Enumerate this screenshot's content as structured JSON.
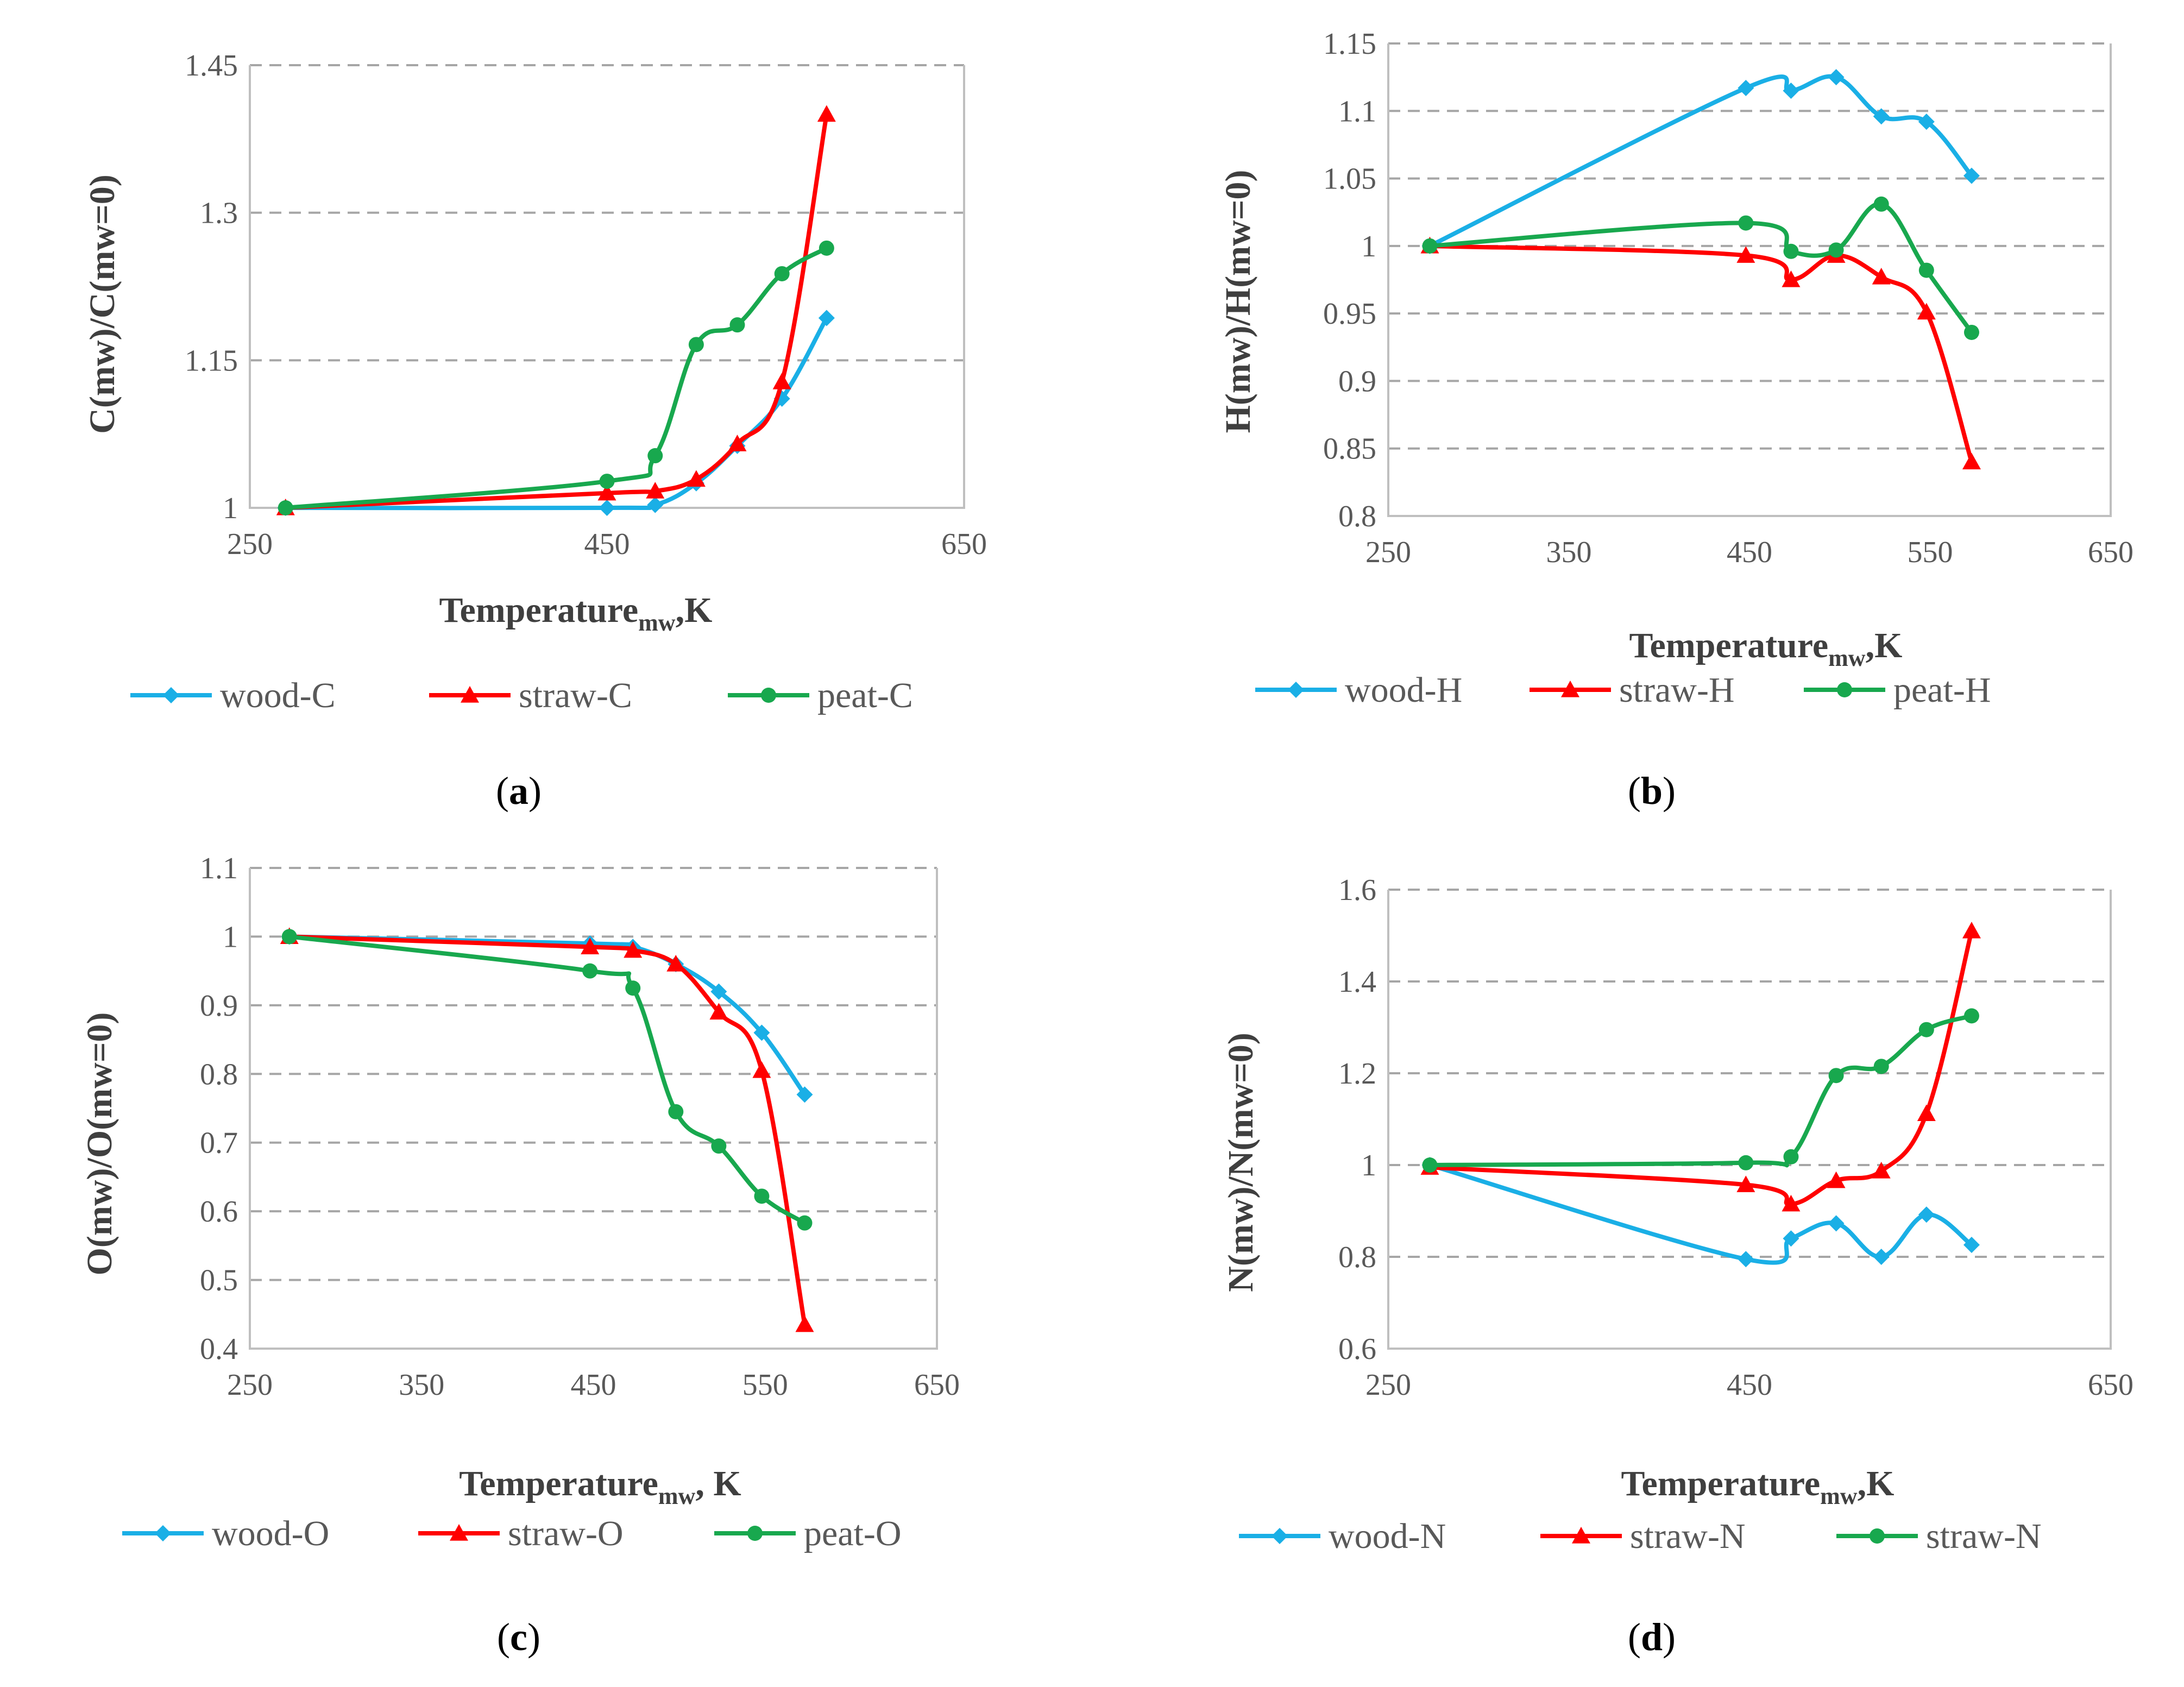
{
  "colors": {
    "wood": "#1aafe6",
    "straw": "#ff0000",
    "peat": "#18a84e"
  },
  "chart_data": [
    {
      "id": "a",
      "type": "line",
      "panel_label": "a",
      "ylabel": "C(mw)/C(mw=0)",
      "xlabel_main": "Temperature",
      "xlabel_sub": "mw",
      "xlabel_tail": ",K",
      "xlim": [
        250,
        650
      ],
      "ylim": [
        1,
        1.45
      ],
      "xticks": [
        250,
        450,
        650
      ],
      "xtick_labels": [
        "250",
        "450",
        "650"
      ],
      "yticks": [
        1,
        1.15,
        1.3,
        1.45
      ],
      "ytick_labels": [
        "1",
        "1.15",
        "1.3",
        "1.45"
      ],
      "series": [
        {
          "name": "wood-C",
          "color": "#1aafe6",
          "marker": "diamond",
          "x": [
            270,
            450,
            477,
            500,
            523,
            548,
            573
          ],
          "y": [
            1.0,
            1.0,
            1.003,
            1.025,
            1.063,
            1.111,
            1.193
          ]
        },
        {
          "name": "straw-C",
          "color": "#ff0000",
          "marker": "triangle",
          "x": [
            270,
            450,
            477,
            500,
            523,
            548,
            573
          ],
          "y": [
            1.0,
            1.015,
            1.017,
            1.029,
            1.065,
            1.128,
            1.4
          ]
        },
        {
          "name": "peat-C",
          "color": "#18a84e",
          "marker": "circle",
          "x": [
            270,
            450,
            477,
            500,
            523,
            548,
            573
          ],
          "y": [
            1.0,
            1.027,
            1.053,
            1.166,
            1.186,
            1.238,
            1.264
          ]
        }
      ]
    },
    {
      "id": "b",
      "type": "line",
      "panel_label": "b",
      "ylabel": "H(mw)/H(mw=0)",
      "xlabel_main": "Temperature",
      "xlabel_sub": "mw",
      "xlabel_tail": ",K",
      "xlim": [
        250,
        650
      ],
      "ylim": [
        0.8,
        1.15
      ],
      "xticks": [
        250,
        350,
        450,
        550,
        650
      ],
      "xtick_labels": [
        "250",
        "350",
        "450",
        "550",
        "650"
      ],
      "yticks": [
        0.8,
        0.85,
        0.9,
        0.95,
        1,
        1.05,
        1.1,
        1.15
      ],
      "ytick_labels": [
        "0.8",
        "0.85",
        "0.9",
        "0.95",
        "1",
        "1.05",
        "1.1",
        "1.15"
      ],
      "series": [
        {
          "name": "wood-H",
          "color": "#1aafe6",
          "marker": "diamond",
          "x": [
            273,
            448,
            473,
            498,
            523,
            548,
            573
          ],
          "y": [
            1.0,
            1.117,
            1.115,
            1.125,
            1.096,
            1.092,
            1.052
          ]
        },
        {
          "name": "straw-H",
          "color": "#ff0000",
          "marker": "triangle",
          "x": [
            273,
            448,
            473,
            498,
            523,
            548,
            573
          ],
          "y": [
            1.0,
            0.993,
            0.975,
            0.993,
            0.977,
            0.951,
            0.84
          ]
        },
        {
          "name": "peat-H",
          "color": "#18a84e",
          "marker": "circle",
          "x": [
            273,
            448,
            473,
            498,
            523,
            548,
            573
          ],
          "y": [
            1.0,
            1.017,
            0.996,
            0.997,
            1.031,
            0.982,
            0.936
          ]
        }
      ]
    },
    {
      "id": "c",
      "type": "line",
      "panel_label": "c",
      "ylabel": "O(mw)/O(mw=0)",
      "xlabel_main": "Temperature",
      "xlabel_sub": "mw",
      "xlabel_tail": ", K",
      "xlim": [
        250,
        650
      ],
      "ylim": [
        0.4,
        1.1
      ],
      "xticks": [
        250,
        350,
        450,
        550,
        650
      ],
      "xtick_labels": [
        "250",
        "350",
        "450",
        "550",
        "650"
      ],
      "yticks": [
        0.4,
        0.5,
        0.6,
        0.7,
        0.8,
        0.9,
        1,
        1.1
      ],
      "ytick_labels": [
        "0.4",
        "0.5",
        "0.6",
        "0.7",
        "0.8",
        "0.9",
        "1",
        "1.1"
      ],
      "series": [
        {
          "name": "wood-O",
          "color": "#1aafe6",
          "marker": "diamond",
          "x": [
            273,
            448,
            473,
            498,
            523,
            548,
            573
          ],
          "y": [
            1.0,
            0.99,
            0.985,
            0.96,
            0.92,
            0.86,
            0.77
          ]
        },
        {
          "name": "straw-O",
          "color": "#ff0000",
          "marker": "triangle",
          "x": [
            273,
            448,
            473,
            498,
            523,
            548,
            573
          ],
          "y": [
            1.0,
            0.985,
            0.98,
            0.96,
            0.89,
            0.805,
            0.435
          ]
        },
        {
          "name": "peat-O",
          "color": "#18a84e",
          "marker": "circle",
          "x": [
            273,
            448,
            473,
            498,
            523,
            548,
            573
          ],
          "y": [
            1.0,
            0.95,
            0.925,
            0.745,
            0.695,
            0.622,
            0.583
          ]
        }
      ]
    },
    {
      "id": "d",
      "type": "line",
      "panel_label": "d",
      "ylabel": "N(mw)/N(mw=0)",
      "xlabel_main": "Temperature",
      "xlabel_sub": "mw",
      "xlabel_tail": ",K",
      "xlim": [
        250,
        650
      ],
      "ylim": [
        0.6,
        1.6
      ],
      "xticks": [
        250,
        450,
        650
      ],
      "xtick_labels": [
        "250",
        "450",
        "650"
      ],
      "yticks": [
        0.6,
        0.8,
        1,
        1.2,
        1.4,
        1.6
      ],
      "ytick_labels": [
        "0.6",
        "0.8",
        "1",
        "1.2",
        "1.4",
        "1.6"
      ],
      "series": [
        {
          "name": "wood-N",
          "color": "#1aafe6",
          "marker": "diamond",
          "x": [
            273,
            448,
            473,
            498,
            523,
            548,
            573
          ],
          "y": [
            1.0,
            0.795,
            0.84,
            0.873,
            0.8,
            0.892,
            0.826
          ]
        },
        {
          "name": "straw-N",
          "color": "#ff0000",
          "marker": "triangle",
          "x": [
            273,
            448,
            473,
            498,
            523,
            548,
            573
          ],
          "y": [
            0.995,
            0.957,
            0.915,
            0.966,
            0.987,
            1.112,
            1.51
          ]
        },
        {
          "name": "straw-N",
          "color": "#18a84e",
          "marker": "circle",
          "x": [
            273,
            448,
            473,
            498,
            523,
            548,
            573
          ],
          "y": [
            1.0,
            1.005,
            1.018,
            1.195,
            1.215,
            1.295,
            1.325
          ]
        }
      ]
    }
  ]
}
